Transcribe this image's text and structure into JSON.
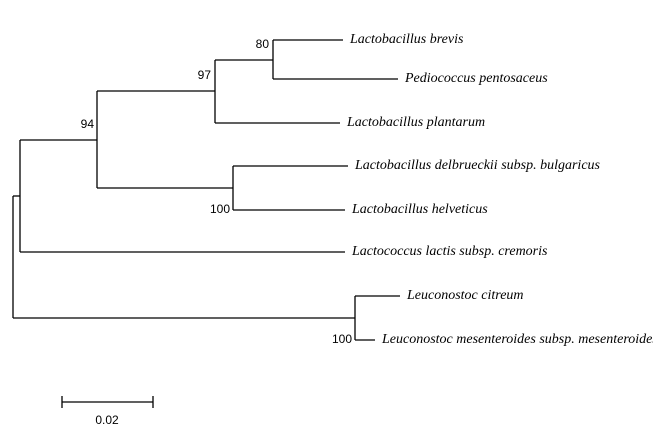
{
  "tree": {
    "leaves": [
      "Lactobacillus brevis",
      "Pediococcus pentosaceus",
      "Lactobacillus plantarum",
      "Lactobacillus delbrueckii subsp. bulgaricus",
      "Lactobacillus helveticus",
      "Lactococcus lactis subsp. cremoris",
      "Leuconostoc citreum",
      "Leuconostoc mesenteroides subsp. mesenteroides"
    ],
    "bootstrap": [
      "80",
      "97",
      "94",
      "100",
      "100"
    ],
    "scale_label": "0.02"
  }
}
